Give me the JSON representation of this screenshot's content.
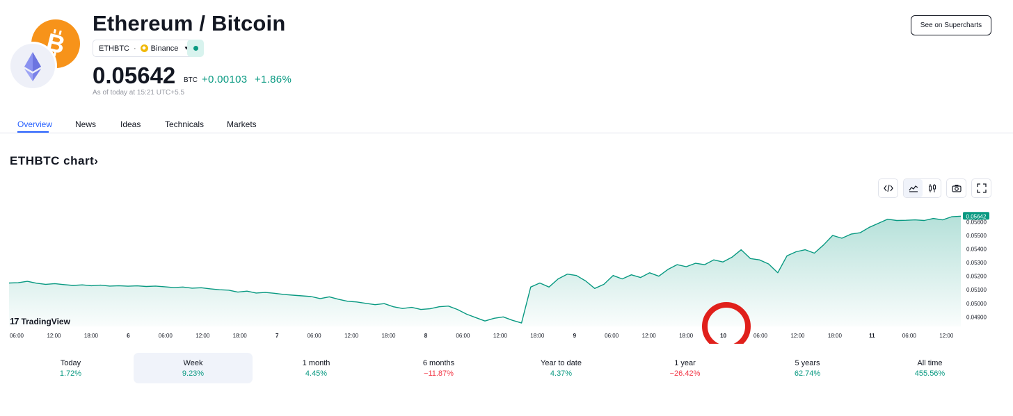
{
  "header": {
    "title": "Ethereum / Bitcoin",
    "symbol": "ETHBTC",
    "separator": "·",
    "exchange": "Binance",
    "price": "0.05642",
    "currency": "BTC",
    "change_abs": "+0.00103",
    "change_pct": "+1.86%",
    "as_of": "As of today at 15:21 UTC+5.5",
    "supercharts_label": "See on Supercharts",
    "icons": [
      "bitcoin-logo",
      "ethereum-logo",
      "binance-icon",
      "chevron-down-icon",
      "market-status-dot"
    ]
  },
  "tabs": [
    "Overview",
    "News",
    "Ideas",
    "Technicals",
    "Markets"
  ],
  "active_tab": "Overview",
  "chart_section": {
    "heading": "ETHBTC chart",
    "heading_chevron": "›",
    "toolbar_icons": [
      "embed-code-icon",
      "area-chart-icon",
      "candles-icon",
      "camera-icon",
      "fullscreen-icon"
    ],
    "watermark": "TradingView",
    "watermark_mark": "17",
    "annotation": "red circle around the dip at 10"
  },
  "chart_data": {
    "type": "area",
    "color": "#089981",
    "last_value_label": "0.05642",
    "y_ticks": [
      "0.05600",
      "0.05500",
      "0.05400",
      "0.05300",
      "0.05200",
      "0.05100",
      "0.05000",
      "0.04900"
    ],
    "x_ticks": [
      "06:00",
      "12:00",
      "18:00",
      "6",
      "06:00",
      "12:00",
      "18:00",
      "7",
      "06:00",
      "12:00",
      "18:00",
      "8",
      "06:00",
      "12:00",
      "18:00",
      "9",
      "06:00",
      "12:00",
      "18:00",
      "10",
      "06:00",
      "12:00",
      "18:00",
      "11",
      "06:00",
      "12:00"
    ],
    "bold_ticks": [
      "6",
      "7",
      "8",
      "9",
      "10",
      "11"
    ],
    "ylim": [
      0.0483,
      0.0571
    ],
    "points": [
      [
        0,
        0.0515
      ],
      [
        1,
        0.05152
      ],
      [
        2,
        0.05162
      ],
      [
        3,
        0.05148
      ],
      [
        4,
        0.0514
      ],
      [
        5,
        0.05145
      ],
      [
        6,
        0.05138
      ],
      [
        7,
        0.05132
      ],
      [
        8,
        0.05136
      ],
      [
        9,
        0.0513
      ],
      [
        10,
        0.05134
      ],
      [
        11,
        0.05127
      ],
      [
        12,
        0.0513
      ],
      [
        13,
        0.05126
      ],
      [
        14,
        0.05129
      ],
      [
        15,
        0.05124
      ],
      [
        16,
        0.05127
      ],
      [
        17,
        0.05122
      ],
      [
        18,
        0.05116
      ],
      [
        19,
        0.0512
      ],
      [
        20,
        0.05112
      ],
      [
        21,
        0.05115
      ],
      [
        22,
        0.05107
      ],
      [
        23,
        0.051
      ],
      [
        24,
        0.05097
      ],
      [
        25,
        0.05083
      ],
      [
        26,
        0.0509
      ],
      [
        27,
        0.05076
      ],
      [
        28,
        0.0508
      ],
      [
        29,
        0.05074
      ],
      [
        30,
        0.05066
      ],
      [
        31,
        0.0506
      ],
      [
        32,
        0.05055
      ],
      [
        33,
        0.0505
      ],
      [
        34,
        0.05035
      ],
      [
        35,
        0.05048
      ],
      [
        36,
        0.0503
      ],
      [
        37,
        0.05015
      ],
      [
        38,
        0.0501
      ],
      [
        39,
        0.05
      ],
      [
        40,
        0.0499
      ],
      [
        41,
        0.04998
      ],
      [
        42,
        0.04975
      ],
      [
        43,
        0.04962
      ],
      [
        44,
        0.0497
      ],
      [
        45,
        0.04955
      ],
      [
        46,
        0.0496
      ],
      [
        47,
        0.04975
      ],
      [
        48,
        0.0498
      ],
      [
        49,
        0.04955
      ],
      [
        50,
        0.0492
      ],
      [
        51,
        0.04895
      ],
      [
        52,
        0.0487
      ],
      [
        53,
        0.0489
      ],
      [
        54,
        0.049
      ],
      [
        55,
        0.04875
      ],
      [
        56,
        0.04855
      ],
      [
        57,
        0.0512
      ],
      [
        58,
        0.0515
      ],
      [
        59,
        0.0512
      ],
      [
        60,
        0.0518
      ],
      [
        61,
        0.05215
      ],
      [
        62,
        0.05205
      ],
      [
        63,
        0.05165
      ],
      [
        64,
        0.0511
      ],
      [
        65,
        0.0514
      ],
      [
        66,
        0.05205
      ],
      [
        67,
        0.0518
      ],
      [
        68,
        0.0521
      ],
      [
        69,
        0.0519
      ],
      [
        70,
        0.05225
      ],
      [
        71,
        0.052
      ],
      [
        72,
        0.0525
      ],
      [
        73,
        0.05285
      ],
      [
        74,
        0.0527
      ],
      [
        75,
        0.05295
      ],
      [
        76,
        0.05285
      ],
      [
        77,
        0.0532
      ],
      [
        78,
        0.05305
      ],
      [
        79,
        0.0534
      ],
      [
        80,
        0.05395
      ],
      [
        81,
        0.0533
      ],
      [
        82,
        0.0532
      ],
      [
        83,
        0.0529
      ],
      [
        84,
        0.05225
      ],
      [
        85,
        0.0535
      ],
      [
        86,
        0.0538
      ],
      [
        87,
        0.05395
      ],
      [
        88,
        0.0537
      ],
      [
        89,
        0.0543
      ],
      [
        90,
        0.055
      ],
      [
        91,
        0.0548
      ],
      [
        92,
        0.0551
      ],
      [
        93,
        0.0552
      ],
      [
        94,
        0.0556
      ],
      [
        95,
        0.0559
      ],
      [
        96,
        0.0562
      ],
      [
        97,
        0.0561
      ],
      [
        98,
        0.05612
      ],
      [
        99,
        0.05615
      ],
      [
        100,
        0.0561
      ],
      [
        101,
        0.05625
      ],
      [
        102,
        0.05615
      ],
      [
        103,
        0.05638
      ],
      [
        104,
        0.05642
      ]
    ]
  },
  "periods": [
    {
      "label": "Today",
      "value": "1.72%",
      "dir": "pos"
    },
    {
      "label": "Week",
      "value": "9.23%",
      "dir": "pos"
    },
    {
      "label": "1 month",
      "value": "4.45%",
      "dir": "pos"
    },
    {
      "label": "6 months",
      "value": "−11.87%",
      "dir": "neg"
    },
    {
      "label": "Year to date",
      "value": "4.37%",
      "dir": "pos"
    },
    {
      "label": "1 year",
      "value": "−26.42%",
      "dir": "neg"
    },
    {
      "label": "5 years",
      "value": "62.74%",
      "dir": "pos"
    },
    {
      "label": "All time",
      "value": "455.56%",
      "dir": "pos"
    }
  ],
  "active_period": "Week"
}
